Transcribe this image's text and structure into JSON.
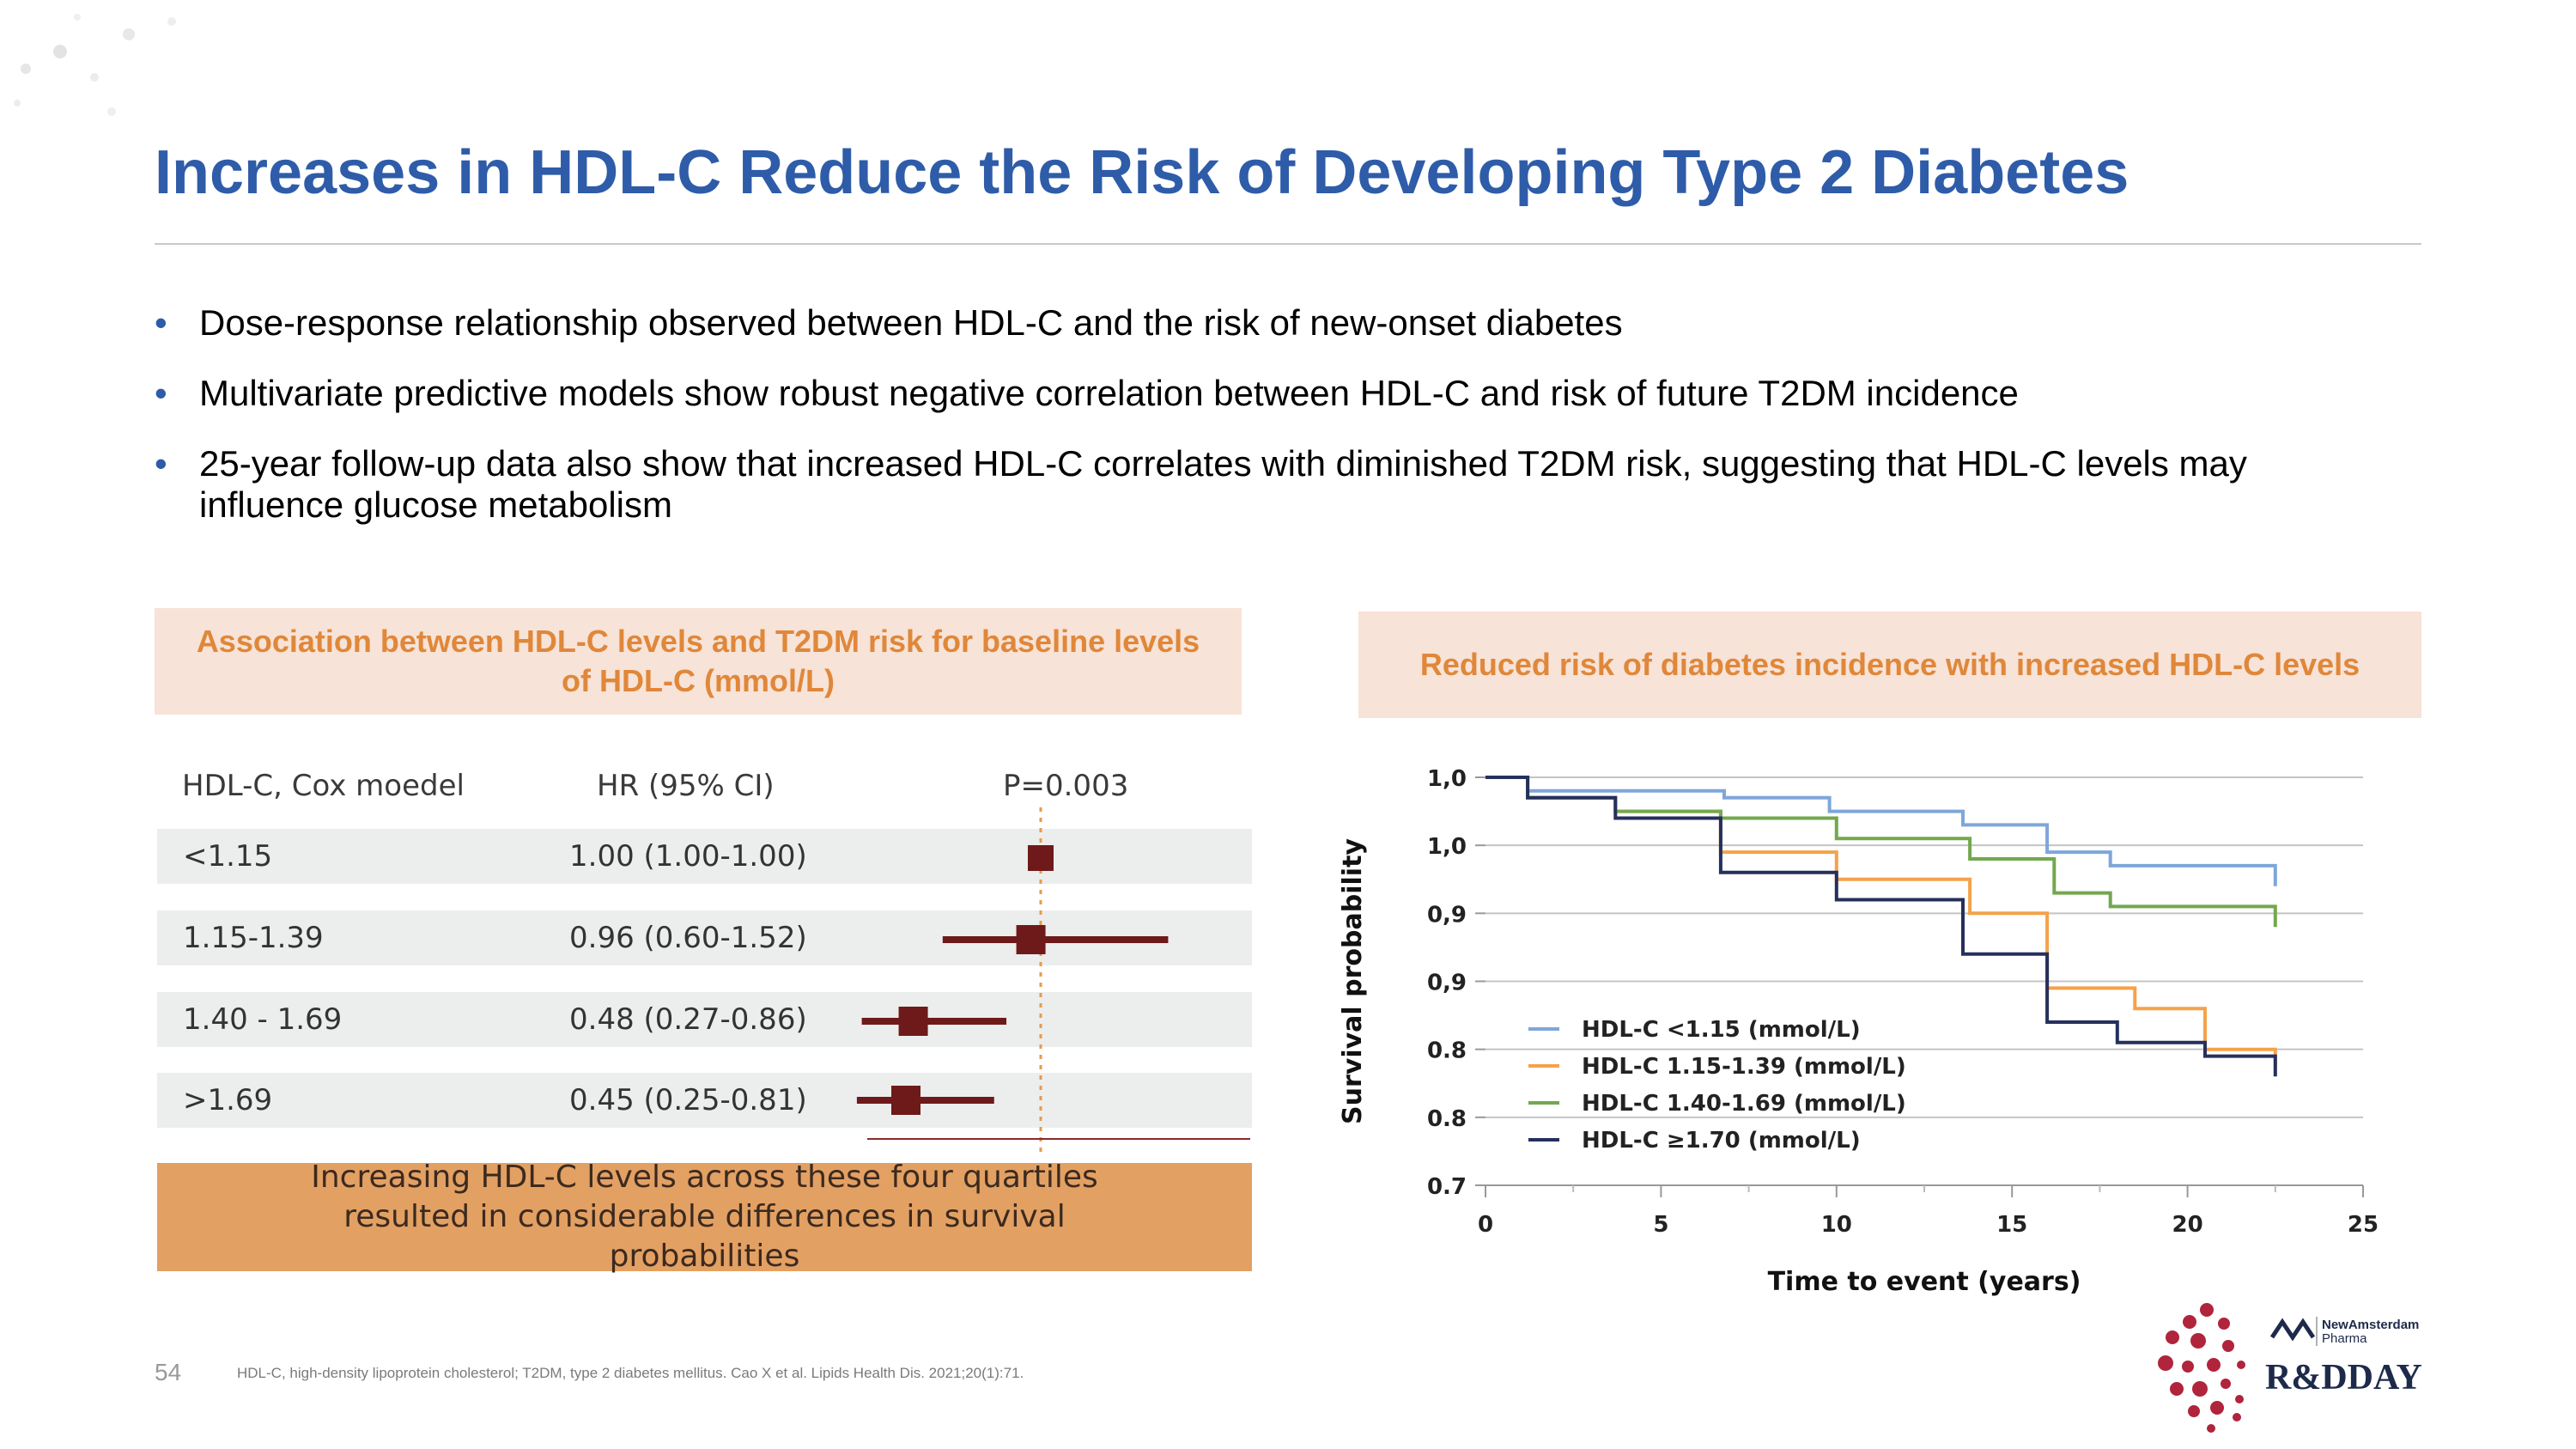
{
  "title": "Increases in HDL-C Reduce the Risk of Developing Type 2 Diabetes",
  "bullets": [
    "Dose-response relationship observed between HDL-C and the risk of new-onset diabetes",
    "Multivariate predictive models show robust negative correlation between HDL-C and risk of future T2DM incidence",
    "25-year follow-up data also show that increased HDL-C correlates with diminished T2DM risk, suggesting that HDL-C levels may influence glucose metabolism"
  ],
  "bullet_char": "•",
  "left_panel": {
    "header": "Association between HDL-C levels and T2DM risk for baseline levels of HDL-C (mmol/L)",
    "col_headers": [
      "HDL-C, Cox moedel",
      "HR (95% CI)",
      "P=0.003"
    ],
    "rows": [
      {
        "group": "<1.15",
        "hr_text": "1.00 (1.00-1.00)",
        "hr": 1.0,
        "lo": 1.0,
        "hi": 1.0
      },
      {
        "group": "1.15-1.39",
        "hr_text": "0.96 (0.60-1.52)",
        "hr": 0.96,
        "lo": 0.6,
        "hi": 1.52
      },
      {
        "group": "1.40 - 1.69",
        "hr_text": "0.48 (0.27-0.86)",
        "hr": 0.48,
        "lo": 0.27,
        "hi": 0.86
      },
      {
        "group": ">1.69",
        "hr_text": "0.45 (0.25-0.81)",
        "hr": 0.45,
        "lo": 0.25,
        "hi": 0.81
      }
    ],
    "banner": "Increasing HDL-C levels across these four quartiles resulted in considerable differences in survival probabilities",
    "marker_color": "#6e1a1a"
  },
  "right_panel": {
    "header": "Reduced risk of diabetes incidence with increased HDL-C levels"
  },
  "chart_data": {
    "type": "line",
    "xlabel": "Time to event (years)",
    "ylabel": "Survival probability",
    "x_ticks": [
      "0",
      "5",
      "10",
      "15",
      "20",
      "25"
    ],
    "y_ticks": [
      "1,0",
      "1,0",
      "0,9",
      "0,9",
      "0.8",
      "0.8",
      "0.7"
    ],
    "xlim": [
      0,
      25
    ],
    "ylim": [
      0.7,
      1.0
    ],
    "series": [
      {
        "name": "HDL-C <1.15 (mmol/L)",
        "color": "#7ea6da",
        "points": [
          [
            0,
            1.0
          ],
          [
            1.2,
            1.0
          ],
          [
            1.2,
            0.99
          ],
          [
            6.8,
            0.99
          ],
          [
            6.8,
            0.985
          ],
          [
            9.8,
            0.985
          ],
          [
            9.8,
            0.975
          ],
          [
            13.6,
            0.975
          ],
          [
            13.6,
            0.965
          ],
          [
            16,
            0.965
          ],
          [
            16,
            0.945
          ],
          [
            17.8,
            0.945
          ],
          [
            17.8,
            0.935
          ],
          [
            22.5,
            0.935
          ],
          [
            22.5,
            0.92
          ]
        ]
      },
      {
        "name": "HDL-C  1.15-1.39 (mmol/L)",
        "color": "#f4a24b",
        "points": [
          [
            0,
            1.0
          ],
          [
            1.2,
            1.0
          ],
          [
            1.2,
            0.985
          ],
          [
            3.7,
            0.985
          ],
          [
            3.7,
            0.975
          ],
          [
            6.7,
            0.975
          ],
          [
            6.7,
            0.945
          ],
          [
            10,
            0.945
          ],
          [
            10,
            0.925
          ],
          [
            13.8,
            0.925
          ],
          [
            13.8,
            0.9
          ],
          [
            16,
            0.9
          ],
          [
            16,
            0.845
          ],
          [
            18.5,
            0.845
          ],
          [
            18.5,
            0.83
          ],
          [
            20.5,
            0.83
          ],
          [
            20.5,
            0.8
          ],
          [
            22.5,
            0.8
          ],
          [
            22.5,
            0.785
          ]
        ]
      },
      {
        "name": "HDL-C  1.40-1.69 (mmol/L)",
        "color": "#73a84e",
        "points": [
          [
            0,
            1.0
          ],
          [
            1.2,
            1.0
          ],
          [
            1.2,
            0.985
          ],
          [
            3.7,
            0.985
          ],
          [
            3.7,
            0.975
          ],
          [
            6.7,
            0.975
          ],
          [
            6.7,
            0.97
          ],
          [
            10,
            0.97
          ],
          [
            10,
            0.955
          ],
          [
            13.8,
            0.955
          ],
          [
            13.8,
            0.94
          ],
          [
            16.2,
            0.94
          ],
          [
            16.2,
            0.915
          ],
          [
            17.8,
            0.915
          ],
          [
            17.8,
            0.905
          ],
          [
            22.5,
            0.905
          ],
          [
            22.5,
            0.89
          ]
        ]
      },
      {
        "name": "HDL-C ≥1.70 (mmol/L)",
        "color": "#25305c",
        "points": [
          [
            0,
            1.0
          ],
          [
            1.2,
            1.0
          ],
          [
            1.2,
            0.985
          ],
          [
            3.7,
            0.985
          ],
          [
            3.7,
            0.97
          ],
          [
            6.7,
            0.97
          ],
          [
            6.7,
            0.93
          ],
          [
            10,
            0.93
          ],
          [
            10,
            0.91
          ],
          [
            13.6,
            0.91
          ],
          [
            13.6,
            0.87
          ],
          [
            16,
            0.87
          ],
          [
            16,
            0.82
          ],
          [
            18,
            0.82
          ],
          [
            18,
            0.805
          ],
          [
            20.5,
            0.805
          ],
          [
            20.5,
            0.795
          ],
          [
            22.5,
            0.795
          ],
          [
            22.5,
            0.78
          ]
        ]
      }
    ],
    "legend_position": "lower-left",
    "grid": true
  },
  "footer": {
    "page_number": "54",
    "footnote": "HDL-C, high-density lipoprotein cholesterol; T2DM, type 2 diabetes mellitus. Cao X et al. Lipids Health Dis. 2021;20(1):71.",
    "logo_brand_top": "NewAmsterdam",
    "logo_brand_bottom": "Pharma",
    "logo_event": "R&DDAY"
  },
  "colors": {
    "title": "#2e5ca9",
    "accent_orange": "#e0873a",
    "panel_bg": "#f7e3d7",
    "logo_red": "#b0243c"
  }
}
